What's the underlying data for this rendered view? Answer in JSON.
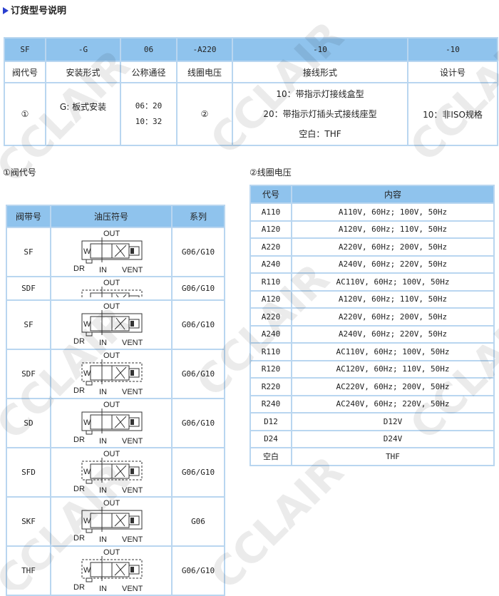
{
  "title": "订货型号说明",
  "order_table": {
    "codes": [
      "SF",
      "-G",
      "06",
      "-A220",
      "-10",
      "-10"
    ],
    "headers": [
      "阀代号",
      "安装形式",
      "公称通径",
      "线圈电压",
      "接线形式",
      "设计号"
    ],
    "details": {
      "valve": "①",
      "mount": "G: 板式安装",
      "size": [
        "06：20",
        "10：32"
      ],
      "voltage": "②",
      "wiring": [
        "10：带指示灯接线盒型",
        "20：带指示灯插头式接线座型",
        "空白：THF"
      ],
      "design": "10：非ISO规格"
    }
  },
  "valve_section": {
    "label": "①阀代号",
    "headers": [
      "阀带号",
      "油压符号",
      "系列"
    ],
    "symbol_labels": {
      "out": "OUT",
      "in": "IN",
      "vent": "VENT",
      "dr": "DR",
      "w": "W"
    },
    "rows": [
      {
        "code": "SF",
        "series": "G06/G10"
      },
      {
        "code": "SDF",
        "series": "G06/G10"
      },
      {
        "code": "SF",
        "series": "G06/G10"
      },
      {
        "code": "SDF",
        "series": "G06/G10"
      },
      {
        "code": "SD",
        "series": "G06/G10"
      },
      {
        "code": "SFD",
        "series": "G06/G10"
      },
      {
        "code": "SKF",
        "series": "G06"
      },
      {
        "code": "THF",
        "series": "G06/G10"
      }
    ]
  },
  "voltage_section": {
    "label": "②线圈电压",
    "headers": [
      "代号",
      "内容"
    ],
    "rows": [
      [
        "A110",
        "A110V, 60Hz; 100V, 50Hz"
      ],
      [
        "A120",
        "A120V, 60Hz; 110V, 50Hz"
      ],
      [
        "A220",
        "A220V, 60Hz; 200V, 50Hz"
      ],
      [
        "A240",
        "A240V, 60Hz; 220V, 50Hz"
      ],
      [
        "R110",
        "AC110V, 60Hz; 100V, 50Hz"
      ],
      [
        "A120",
        "A120V, 60Hz; 110V, 50Hz"
      ],
      [
        "A220",
        "A220V, 60Hz; 200V, 50Hz"
      ],
      [
        "A240",
        "A240V, 60Hz; 220V, 50Hz"
      ],
      [
        "R110",
        "AC110V, 60Hz; 100V, 50Hz"
      ],
      [
        "R120",
        "AC120V, 60Hz; 110V, 50Hz"
      ],
      [
        "R220",
        "AC220V, 60Hz; 200V, 50Hz"
      ],
      [
        "R240",
        "AC240V, 60Hz; 220V, 50Hz"
      ],
      [
        "D12",
        "D12V"
      ],
      [
        "D24",
        "D24V"
      ],
      [
        "空白",
        "THF"
      ]
    ]
  },
  "watermark": "CCLAIR",
  "colors": {
    "header": "#8fc3ed",
    "border": "#b9d6f0"
  }
}
